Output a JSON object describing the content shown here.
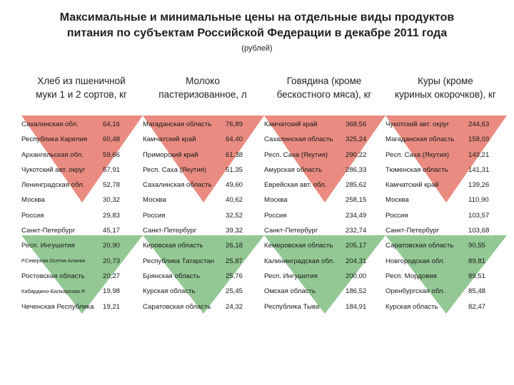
{
  "title_line1": "Максимальные и минимальные цены на отдельные виды продуктов",
  "title_line2": "питания по субъектам Российской Федерации в декабре 2011 года",
  "subtitle": "(рублей)",
  "colors": {
    "max": "#e36a5c",
    "min": "#74b877"
  },
  "columns": [
    {
      "line1": "Хлеб из пшеничной",
      "line2": "муки 1 и 2 сортов, кг"
    },
    {
      "line1": "Молоко",
      "line2": "пастеризованное, л"
    },
    {
      "line1": "Говядина (кроме",
      "line2": "бескостного мяса), кг"
    },
    {
      "line1": "Куры (кроме",
      "line2": "куриных окорочков), кг"
    }
  ],
  "rows": [
    {
      "c": [
        {
          "r": "Сахалинская обл.",
          "v": "64,16"
        },
        {
          "r": "Магаданская область",
          "v": "76,89"
        },
        {
          "r": "Камчатский край",
          "v": "368,56"
        },
        {
          "r": "Чукотский авт. округ",
          "v": "244,63"
        }
      ]
    },
    {
      "c": [
        {
          "r": "Республика Карелия",
          "v": "60,48"
        },
        {
          "r": "Камчатский край",
          "v": "64,40"
        },
        {
          "r": "Сахалинская область",
          "v": "325,24"
        },
        {
          "r": "Магаданская область",
          "v": "158,03"
        }
      ]
    },
    {
      "c": [
        {
          "r": "Архангельская обл.",
          "v": "59,66"
        },
        {
          "r": "Приморский край",
          "v": "61,38"
        },
        {
          "r": "Респ. Саха (Якутия)",
          "v": "290,22"
        },
        {
          "r": "Респ. Саха (Якутия)",
          "v": "143,21"
        }
      ]
    },
    {
      "c": [
        {
          "r": "Чукотский авт. округ",
          "v": "57,91"
        },
        {
          "r": "Респ. Саха (Якутия)",
          "v": "51,35"
        },
        {
          "r": "Амурская область",
          "v": "286,33"
        },
        {
          "r": "Тюменская область",
          "v": "141,31"
        }
      ]
    },
    {
      "c": [
        {
          "r": "Ленинградская обл.",
          "v": "52,78"
        },
        {
          "r": "Сахалинская область",
          "v": "49,60"
        },
        {
          "r": "Еврейская авт. обл.",
          "v": "285,62"
        },
        {
          "r": "Камчатский край",
          "v": "139,26"
        }
      ]
    },
    {
      "c": [
        {
          "r": "Москва",
          "v": "30,32"
        },
        {
          "r": "Москва",
          "v": "40,62"
        },
        {
          "r": "Москва",
          "v": "258,15"
        },
        {
          "r": "Москва",
          "v": "110,90"
        }
      ]
    },
    {
      "c": [
        {
          "r": "Россия",
          "v": "29,83"
        },
        {
          "r": "Россия",
          "v": "32,52"
        },
        {
          "r": "Россия",
          "v": "234,49"
        },
        {
          "r": "Россия",
          "v": "103,57"
        }
      ]
    },
    {
      "c": [
        {
          "r": "Санкт-Петербург",
          "v": "45,17"
        },
        {
          "r": "Санкт-Петербург",
          "v": "39,32"
        },
        {
          "r": "Санкт-Петербург",
          "v": "232,74"
        },
        {
          "r": "Санкт-Петербург",
          "v": "103,68"
        }
      ]
    },
    {
      "c": [
        {
          "r": "Респ. Ингушетия",
          "v": "20,90"
        },
        {
          "r": "Кировская область",
          "v": "26,18"
        },
        {
          "r": "Кемеровская область",
          "v": "205,17"
        },
        {
          "r": "Саратовская область",
          "v": "90,55"
        }
      ]
    },
    {
      "c": [
        {
          "r": "Р.Северная Осетия-Алания",
          "v": "20,73"
        },
        {
          "r": "Республика Татарстан",
          "v": "25,87"
        },
        {
          "r": "Калининградская обл.",
          "v": "204,31"
        },
        {
          "r": "Новгородская обл.",
          "v": "89,81"
        }
      ]
    },
    {
      "c": [
        {
          "r": "Ростовская область",
          "v": "20,27"
        },
        {
          "r": "Брянская область",
          "v": "25,76"
        },
        {
          "r": "Респ. Ингушетия",
          "v": "200,00"
        },
        {
          "r": "Респ. Мордовия",
          "v": "89,51"
        }
      ]
    },
    {
      "c": [
        {
          "r": "Кабардино-Балкарская Р.",
          "v": "19,98"
        },
        {
          "r": "Курская область",
          "v": "25,45"
        },
        {
          "r": "Омская область",
          "v": "186,52"
        },
        {
          "r": "Оренбургская обл.",
          "v": "85,48"
        }
      ]
    },
    {
      "c": [
        {
          "r": "Чеченская Республика",
          "v": "19,21"
        },
        {
          "r": "Саратовская область",
          "v": "24,32"
        },
        {
          "r": "Республика Тыва",
          "v": "184,91"
        },
        {
          "r": "Курская область",
          "v": "82,47"
        }
      ]
    }
  ]
}
